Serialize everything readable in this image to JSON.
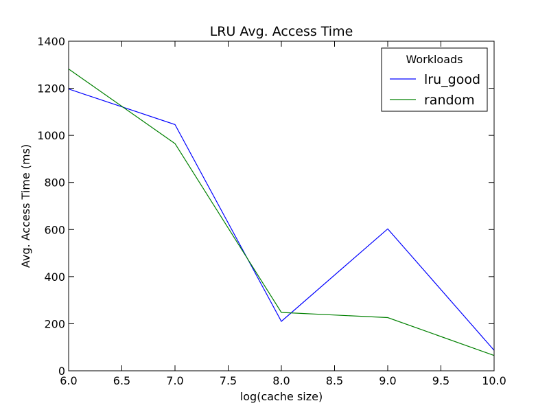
{
  "chart_data": {
    "type": "line",
    "title": "LRU Avg. Access Time",
    "xlabel": "log(cache size)",
    "ylabel": "Avg. Access Time (ms)",
    "xlim": [
      6.0,
      10.0
    ],
    "ylim": [
      0,
      1400
    ],
    "xticks": [
      "6.0",
      "6.5",
      "7.0",
      "7.5",
      "8.0",
      "8.5",
      "9.0",
      "9.5",
      "10.0"
    ],
    "yticks": [
      "0",
      "200",
      "400",
      "600",
      "800",
      "1000",
      "1200",
      "1400"
    ],
    "grid": false,
    "legend": {
      "title": "Workloads",
      "placement": "top-right"
    },
    "series": [
      {
        "name": "lru_good",
        "color": "#0000ff",
        "x": [
          6.0,
          7.0,
          8.0,
          9.0,
          10.0
        ],
        "y": [
          1197,
          1046,
          210,
          603,
          87
        ]
      },
      {
        "name": "random",
        "color": "#008000",
        "x": [
          6.0,
          7.0,
          8.0,
          9.0,
          10.0
        ],
        "y": [
          1282,
          965,
          248,
          226,
          65
        ]
      }
    ]
  }
}
